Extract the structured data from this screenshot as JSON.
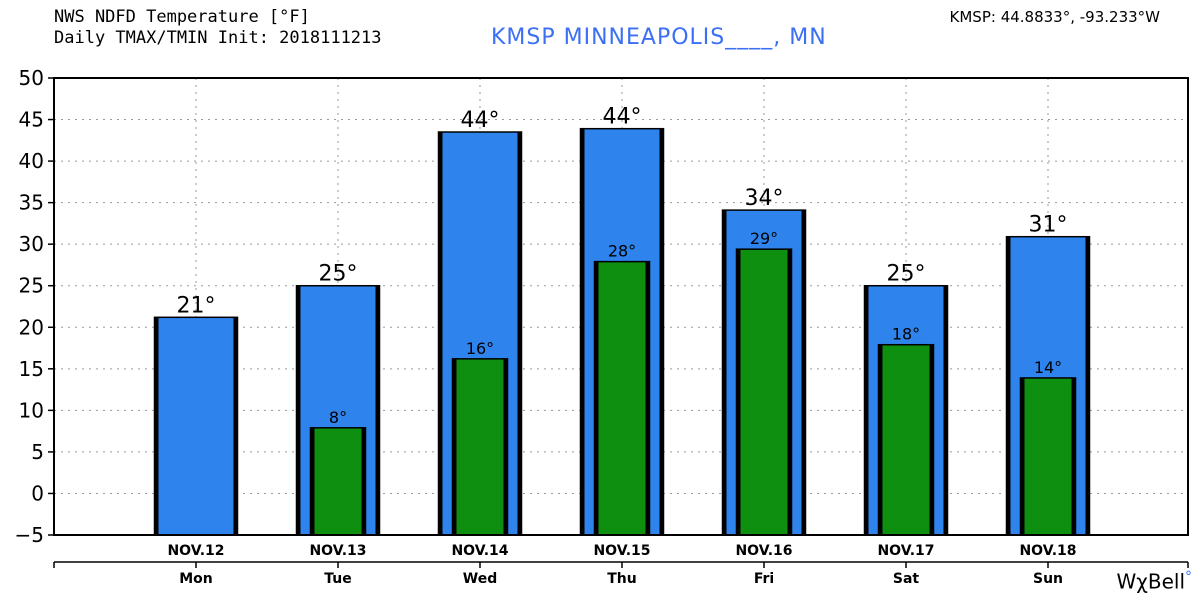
{
  "header": {
    "title_line1": "NWS NDFD Temperature [°F]",
    "title_line2": "Daily TMAX/TMIN Init: 2018111213",
    "station": "KMSP MINNEAPOLIS____, MN",
    "coords": "KMSP: 44.8833°, -93.233°W"
  },
  "logo": {
    "text": "WχBell",
    "dot": "°"
  },
  "colors": {
    "tmax": "#2f83ec",
    "tmin": "#0f8f10",
    "outline": "#000000",
    "station_text": "#3b6ff5"
  },
  "chart_data": {
    "type": "bar",
    "categories": [
      "NOV.12",
      "NOV.13",
      "NOV.14",
      "NOV.15",
      "NOV.16",
      "NOV.17",
      "NOV.18"
    ],
    "weekdays": [
      "Mon",
      "Tue",
      "Wed",
      "Thu",
      "Fri",
      "Sat",
      "Sun"
    ],
    "series": [
      {
        "name": "TMAX",
        "values": [
          21.2,
          25.0,
          43.5,
          43.9,
          34.1,
          25.0,
          30.9
        ],
        "labels": [
          "21°",
          "25°",
          "44°",
          "44°",
          "34°",
          "25°",
          "31°"
        ]
      },
      {
        "name": "TMIN",
        "values": [
          null,
          7.9,
          16.2,
          27.9,
          29.4,
          17.9,
          13.9
        ],
        "labels": [
          "",
          "8°",
          "16°",
          "28°",
          "29°",
          "18°",
          "14°"
        ]
      }
    ],
    "yticks": [
      -5,
      0,
      5,
      10,
      15,
      20,
      25,
      30,
      35,
      40,
      45,
      50
    ],
    "ylim": [
      -5,
      50
    ],
    "xlabel": "",
    "ylabel": "",
    "grid": true,
    "legend": "none"
  }
}
